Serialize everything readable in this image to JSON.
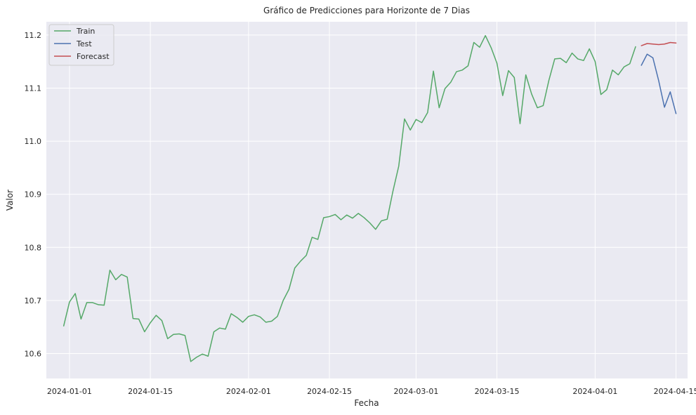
{
  "chart_data": {
    "type": "line",
    "title": "Gráfico de Predicciones para Horizonte de 7 Dias",
    "xlabel": "Fecha",
    "ylabel": "Valor",
    "xlim": [
      "2023-12-28",
      "2024-04-17"
    ],
    "ylim": [
      10.553,
      11.225
    ],
    "grid": true,
    "legend_position": "top-left",
    "x_ticks": [
      {
        "date": "2024-01-01",
        "label": "2024-01-01"
      },
      {
        "date": "2024-01-15",
        "label": "2024-01-15"
      },
      {
        "date": "2024-02-01",
        "label": "2024-02-01"
      },
      {
        "date": "2024-02-15",
        "label": "2024-02-15"
      },
      {
        "date": "2024-03-01",
        "label": "2024-03-01"
      },
      {
        "date": "2024-03-15",
        "label": "2024-03-15"
      },
      {
        "date": "2024-04-01",
        "label": "2024-04-01"
      },
      {
        "date": "2024-04-15",
        "label": "2024-04-15"
      }
    ],
    "y_ticks": [
      10.6,
      10.7,
      10.8,
      10.9,
      11.0,
      11.1,
      11.2
    ],
    "y_tick_labels": [
      "10.6",
      "10.7",
      "10.8",
      "10.9",
      "11.0",
      "11.1",
      "11.2"
    ],
    "series": [
      {
        "name": "Train",
        "color": "#55a868",
        "start_date": "2023-12-31",
        "values": [
          10.652,
          10.697,
          10.713,
          10.665,
          10.696,
          10.696,
          10.692,
          10.691,
          10.757,
          10.739,
          10.749,
          10.744,
          10.666,
          10.665,
          10.641,
          10.658,
          10.672,
          10.662,
          10.628,
          10.636,
          10.637,
          10.634,
          10.585,
          10.593,
          10.599,
          10.595,
          10.641,
          10.648,
          10.646,
          10.675,
          10.668,
          10.659,
          10.67,
          10.673,
          10.669,
          10.659,
          10.661,
          10.67,
          10.7,
          10.721,
          10.761,
          10.774,
          10.785,
          10.819,
          10.815,
          10.856,
          10.858,
          10.862,
          10.852,
          10.861,
          10.855,
          10.864,
          10.856,
          10.846,
          10.834,
          10.85,
          10.853,
          10.906,
          10.953,
          11.042,
          11.021,
          11.041,
          11.035,
          11.054,
          11.132,
          11.063,
          11.099,
          11.111,
          11.131,
          11.134,
          11.142,
          11.186,
          11.177,
          11.199,
          11.176,
          11.147,
          11.086,
          11.133,
          11.12,
          11.033,
          11.125,
          11.089,
          11.063,
          11.067,
          11.115,
          11.155,
          11.156,
          11.148,
          11.166,
          11.155,
          11.152,
          11.174,
          11.15,
          11.088,
          11.097,
          11.134,
          11.125,
          11.14,
          11.146,
          11.178
        ]
      },
      {
        "name": "Test",
        "color": "#4c72b0",
        "start_date": "2024-04-09",
        "values": [
          11.143,
          11.164,
          11.157,
          11.114,
          11.064,
          11.093,
          11.052
        ]
      },
      {
        "name": "Forecast",
        "color": "#c44e52",
        "start_date": "2024-04-09",
        "values": [
          11.18,
          11.184,
          11.183,
          11.182,
          11.183,
          11.186,
          11.185
        ]
      }
    ]
  }
}
